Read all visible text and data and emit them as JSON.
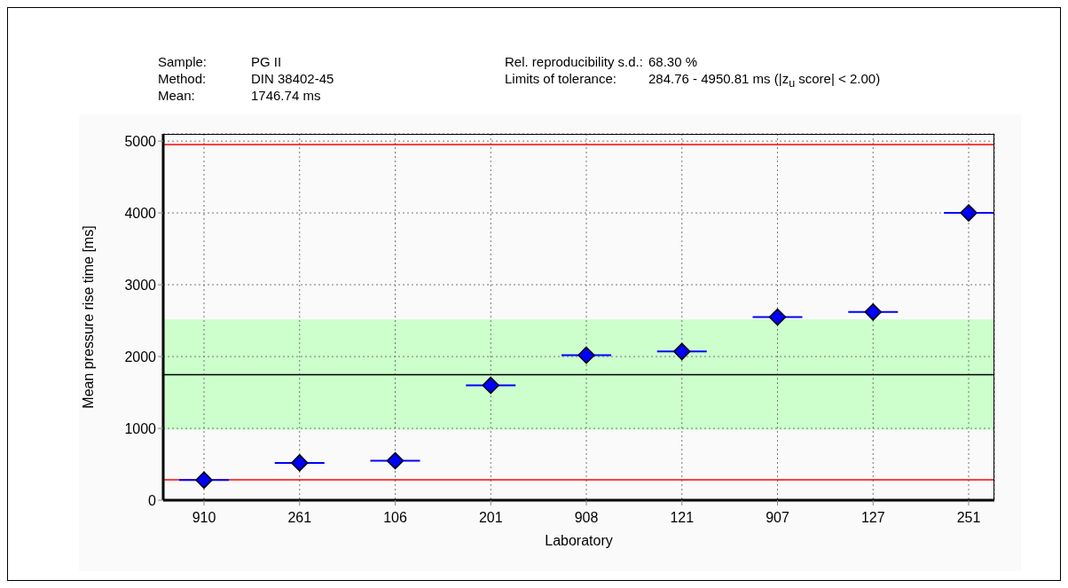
{
  "chart_data": {
    "type": "scatter",
    "xlabel": "Laboratory",
    "ylabel": "Mean pressure rise time [ms]",
    "annotations": [
      "Sample:",
      "PG II",
      "Method:",
      "DIN 38402-45",
      "Mean:",
      "1746.74 ms",
      "Rel. reproducibility s.d.:",
      "68.30 %",
      "Limits of tolerance:",
      "284.76 - 4950.81 ms  (|z$_{u}$ score| < 2.00)"
    ],
    "categories": [
      "910",
      "261",
      "106",
      "201",
      "908",
      "121",
      "907",
      "127",
      "251"
    ],
    "series": [
      {
        "color": "#0000ff",
        "values": [
          280,
          520,
          550,
          1600,
          2020,
          2070,
          2550,
          2620,
          4000
        ]
      }
    ],
    "marker": "diamond",
    "ylim": [
      0,
      5100
    ],
    "yticks": [
      0,
      1000,
      2000,
      3000,
      4000,
      5000
    ],
    "grid": true,
    "ref_lines": [
      {
        "axis": "y",
        "value": 284.76,
        "color": "#ff0000"
      },
      {
        "axis": "y",
        "value": 4950.81,
        "color": "#ff0000"
      },
      {
        "axis": "y",
        "value": 1746.74,
        "color": "#000000"
      }
    ],
    "bands": [
      {
        "axis": "y",
        "from": 980,
        "to": 2518,
        "color": "#ccffcc"
      }
    ]
  }
}
